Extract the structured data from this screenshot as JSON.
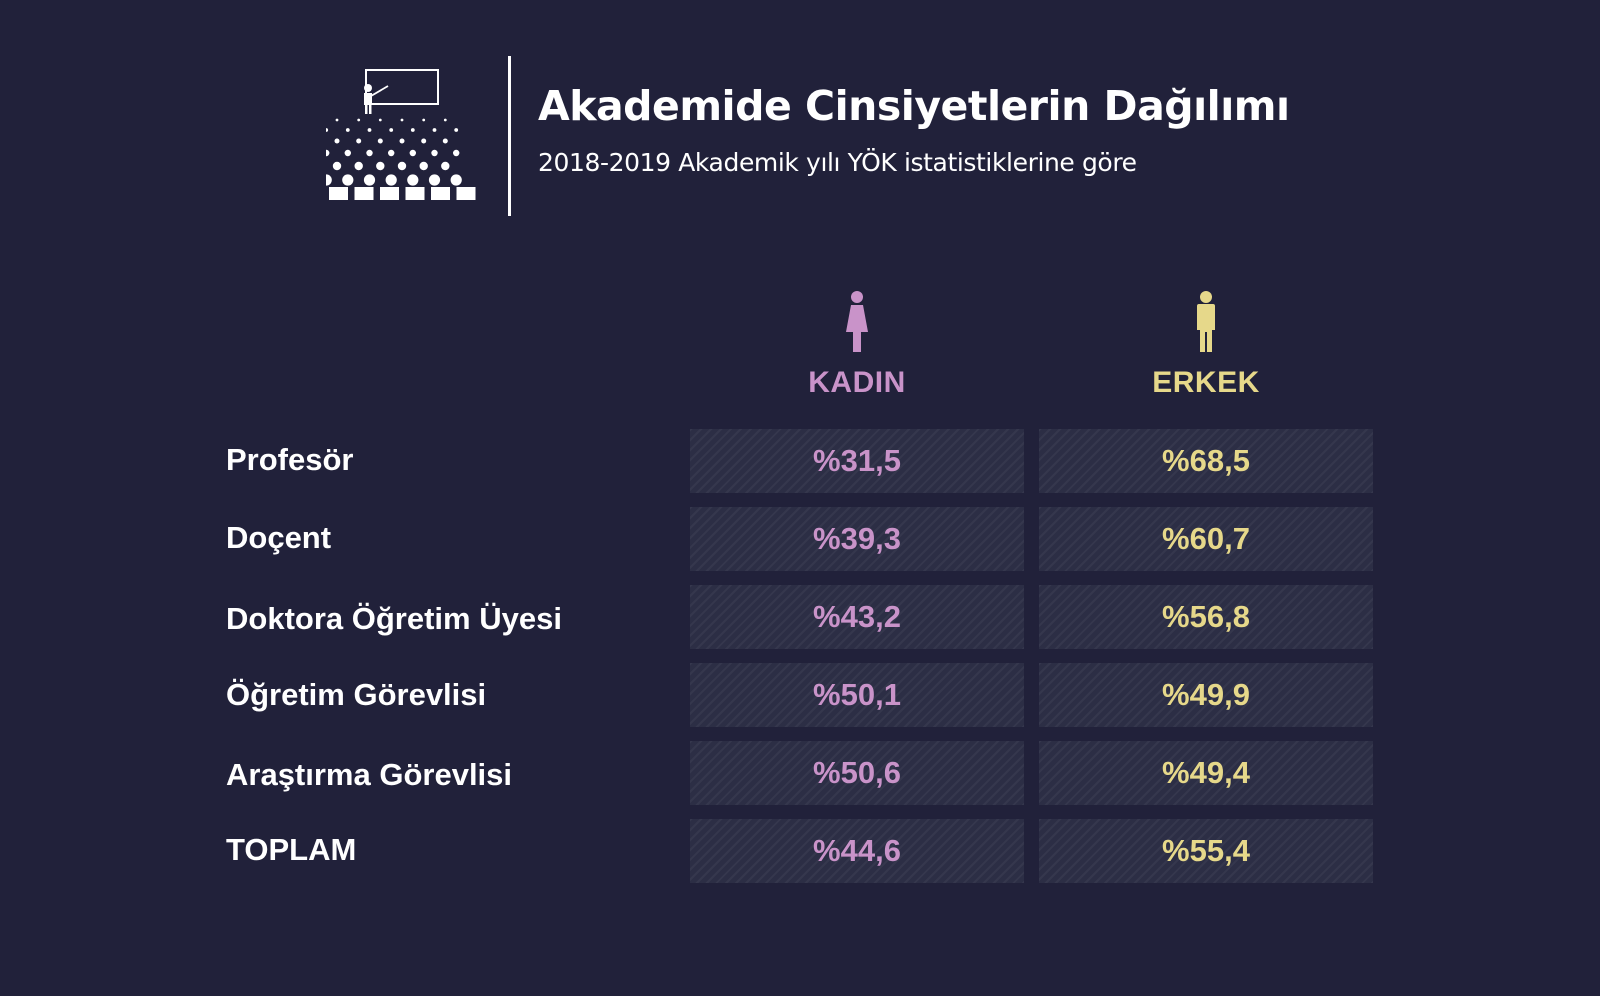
{
  "header": {
    "title": "Akademide Cinsiyetlerin Dağılımı",
    "subtitle": "2018-2019 Akademik yılı YÖK istatistiklerine göre",
    "icon": "lecture-audience-icon"
  },
  "colors": {
    "background": "#21213a",
    "kadin": "#c993c9",
    "erkek": "#e6d88a",
    "cell": "#2c2e45"
  },
  "chart_data": {
    "type": "table",
    "title": "Akademide Cinsiyetlerin Dağılımı",
    "subtitle": "2018-2019 Akademik yılı YÖK istatistiklerine göre",
    "columns": [
      {
        "label": "KADIN",
        "icon": "female-person-icon",
        "color": "#c993c9"
      },
      {
        "label": "ERKEK",
        "icon": "male-person-icon",
        "color": "#e6d88a"
      }
    ],
    "rows": [
      {
        "label": "Profesör",
        "kadin": "%31,5",
        "erkek": "%68,5",
        "kadin_value": 31.5,
        "erkek_value": 68.5
      },
      {
        "label": "Doçent",
        "kadin": "%39,3",
        "erkek": "%60,7",
        "kadin_value": 39.3,
        "erkek_value": 60.7
      },
      {
        "label": "Doktora Öğretim Üyesi",
        "kadin": "%43,2",
        "erkek": "%56,8",
        "kadin_value": 43.2,
        "erkek_value": 56.8
      },
      {
        "label": "Öğretim Görevlisi",
        "kadin": "%50,1",
        "erkek": "%49,9",
        "kadin_value": 50.1,
        "erkek_value": 49.9
      },
      {
        "label": "Araştırma Görevlisi",
        "kadin": "%50,6",
        "erkek": "%49,4",
        "kadin_value": 50.6,
        "erkek_value": 49.4
      },
      {
        "label": "TOPLAM",
        "kadin": "%44,6",
        "erkek": "%55,4",
        "kadin_value": 44.6,
        "erkek_value": 55.4
      }
    ]
  }
}
